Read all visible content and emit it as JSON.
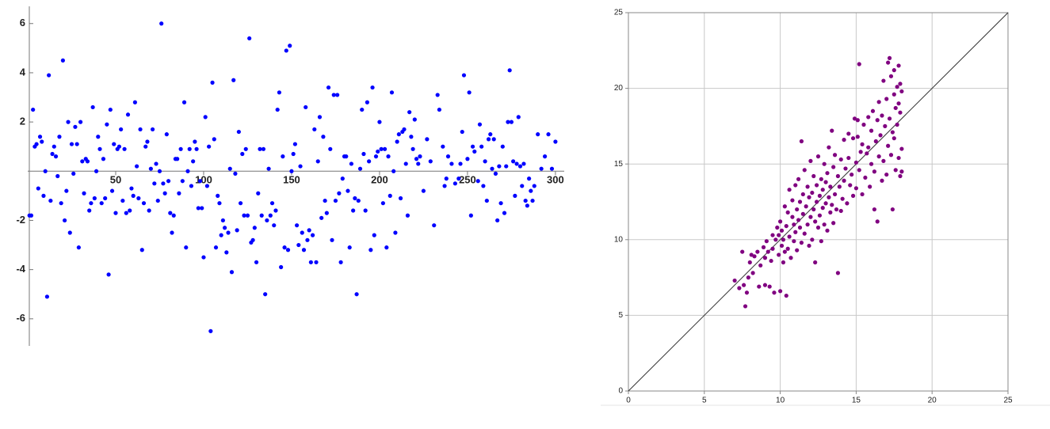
{
  "chart_data": [
    {
      "type": "scatter",
      "color": "#0000ff",
      "frame": false,
      "grid": false,
      "diagonal_line": false,
      "xlim": [
        0,
        305
      ],
      "ylim": [
        -7.1,
        6.7
      ],
      "xticks": [
        50,
        100,
        150,
        200,
        250,
        300
      ],
      "yticks": [
        -6,
        -4,
        -2,
        2,
        4,
        6
      ],
      "x": [
        1,
        2,
        3,
        4,
        5,
        6,
        7,
        8,
        9,
        10,
        11,
        12,
        13,
        14,
        15,
        16,
        17,
        18,
        19,
        20,
        21,
        22,
        23,
        24,
        25,
        26,
        27,
        28,
        29,
        30,
        31,
        32,
        33,
        34,
        35,
        36,
        37,
        38,
        39,
        40,
        41,
        42,
        43,
        44,
        45,
        46,
        47,
        48,
        49,
        50,
        51,
        52,
        53,
        54,
        55,
        56,
        57,
        58,
        59,
        60,
        61,
        62,
        63,
        64,
        65,
        66,
        67,
        68,
        69,
        70,
        71,
        72,
        73,
        74,
        75,
        76,
        77,
        78,
        79,
        80,
        81,
        82,
        83,
        84,
        85,
        86,
        87,
        88,
        89,
        90,
        91,
        92,
        93,
        94,
        95,
        96,
        97,
        98,
        99,
        100,
        101,
        102,
        103,
        104,
        105,
        106,
        107,
        108,
        109,
        110,
        111,
        112,
        113,
        114,
        115,
        116,
        117,
        118,
        119,
        120,
        121,
        122,
        123,
        124,
        125,
        126,
        127,
        128,
        129,
        130,
        131,
        132,
        133,
        134,
        135,
        136,
        137,
        138,
        139,
        140,
        141,
        142,
        143,
        144,
        145,
        146,
        147,
        148,
        149,
        150,
        151,
        152,
        153,
        154,
        155,
        156,
        157,
        158,
        159,
        160,
        161,
        162,
        163,
        164,
        165,
        166,
        167,
        168,
        169,
        170,
        171,
        172,
        173,
        174,
        175,
        176,
        177,
        178,
        179,
        180,
        181,
        182,
        183,
        184,
        185,
        186,
        187,
        188,
        189,
        190,
        191,
        192,
        193,
        194,
        195,
        196,
        197,
        198,
        199,
        200,
        201,
        202,
        203,
        204,
        205,
        206,
        207,
        208,
        209,
        210,
        211,
        212,
        213,
        214,
        215,
        216,
        217,
        218,
        219,
        220,
        221,
        222,
        223,
        225,
        227,
        229,
        231,
        233,
        234,
        236,
        237,
        238,
        239,
        241,
        243,
        245,
        246,
        247,
        248,
        250,
        251,
        252,
        253,
        254,
        256,
        257,
        258,
        259,
        260,
        261,
        262,
        263,
        264,
        265,
        266,
        267,
        268,
        269,
        270,
        271,
        272,
        273,
        274,
        275,
        276,
        277,
        278,
        279,
        280,
        281,
        282,
        283,
        284,
        285,
        286,
        287,
        288,
        290,
        292,
        294,
        296,
        298,
        300
      ],
      "values": [
        -1.8,
        -1.8,
        2.5,
        1.0,
        1.1,
        -0.7,
        1.4,
        1.2,
        -1.0,
        0,
        -5.1,
        3.9,
        -1.2,
        0.7,
        1.0,
        0.6,
        -0.2,
        1.4,
        -1.3,
        4.5,
        -2.0,
        -0.8,
        2.0,
        -2.5,
        1.1,
        -0.1,
        1.8,
        1.1,
        -3.1,
        2.0,
        0.4,
        -0.9,
        0.5,
        0.4,
        -1.6,
        -1.3,
        2.6,
        -1.1,
        0,
        1.4,
        0.9,
        -1.3,
        0.5,
        -1.1,
        1.9,
        -4.2,
        2.5,
        -0.8,
        1.1,
        -1.7,
        0.9,
        1.0,
        1.7,
        -1.2,
        0.9,
        -1.7,
        2.3,
        -1.6,
        -0.7,
        -1.0,
        2.8,
        0.2,
        -1.1,
        1.7,
        -3.2,
        -1.3,
        1.0,
        1.2,
        -1.6,
        0.1,
        1.7,
        -0.5,
        0.3,
        -1.2,
        0,
        6.0,
        -0.5,
        -0.9,
        1.5,
        -0.4,
        -1.7,
        -2.5,
        -1.8,
        0.5,
        0.5,
        -0.9,
        0.9,
        -0.4,
        2.8,
        -3.1,
        0,
        0.9,
        -0.6,
        0.4,
        1.2,
        0.9,
        -1.5,
        -0.4,
        -1.5,
        -3.5,
        2.2,
        -0.6,
        1.0,
        -6.5,
        3.6,
        1.3,
        -3.1,
        -1.0,
        -1.3,
        -2.6,
        -2.0,
        -2.3,
        -3.3,
        -2.5,
        0.1,
        -4.1,
        3.7,
        -0.1,
        -2.4,
        1.6,
        -1.3,
        0.7,
        -1.8,
        0.9,
        -1.8,
        5.4,
        -2.9,
        -2.8,
        -2.3,
        -3.7,
        -0.9,
        0.9,
        -1.8,
        0.9,
        -5.0,
        -2.0,
        0.1,
        -1.8,
        -1.3,
        -2.2,
        -1.6,
        2.5,
        3.2,
        -3.9,
        0.6,
        -3.1,
        4.9,
        -3.2,
        5.1,
        0,
        0.7,
        1.1,
        -2.2,
        -3.0,
        0.2,
        -2.5,
        -3.2,
        2.6,
        -2.8,
        -2.4,
        -3.7,
        -2.6,
        1.7,
        -3.7,
        0.4,
        2.2,
        -1.9,
        1.4,
        -1.2,
        -1.7,
        3.4,
        0.9,
        -2.8,
        3.1,
        -1.2,
        3.1,
        -0.9,
        -3.7,
        -0.3,
        0.6,
        0.6,
        -0.8,
        -3.1,
        0.3,
        -1.6,
        -1.1,
        -5.0,
        -1.2,
        0.1,
        2.5,
        0.7,
        -1.6,
        2.8,
        0.4,
        -3.2,
        3.4,
        -2.6,
        0.6,
        0.8,
        2.0,
        0.9,
        -1.3,
        0.9,
        -3.1,
        0.6,
        -1.0,
        3.2,
        0,
        -2.5,
        1.2,
        1.5,
        -1.1,
        1.6,
        1.7,
        0.3,
        -1.8,
        2.4,
        1.4,
        0.9,
        2.1,
        0.5,
        0.3,
        0.6,
        -0.8,
        1.3,
        0.4,
        -2.2,
        3.1,
        2.5,
        1.0,
        -0.6,
        -0.3,
        0.6,
        0.3,
        -0.5,
        -0.3,
        0.3,
        1.6,
        3.9,
        0.5,
        3.2,
        -1.8,
        1.0,
        0.8,
        -0.4,
        1.9,
        1.0,
        -0.6,
        0.4,
        -1.2,
        1.3,
        1.5,
        0.1,
        1.3,
        -0.1,
        -2.0,
        0.2,
        -1.3,
        1.0,
        -1.7,
        0.2,
        2.0,
        4.1,
        2.0,
        0.4,
        -1.0,
        0.3,
        2.2,
        0.2,
        -0.6,
        0.3,
        -1.2,
        -1.4,
        -0.3,
        -0.8,
        -1.2,
        -0.6,
        1.5,
        0.1,
        0.6,
        1.5,
        0.1,
        1.2
      ]
    },
    {
      "type": "scatter",
      "color": "#800080",
      "frame": true,
      "grid": true,
      "diagonal_line": true,
      "xlim": [
        0,
        25
      ],
      "ylim": [
        0,
        25
      ],
      "xticks": [
        0,
        5,
        10,
        15,
        20,
        25
      ],
      "yticks": [
        0,
        5,
        10,
        15,
        20,
        25
      ],
      "x": [
        7.0,
        7.3,
        7.5,
        7.6,
        7.7,
        7.8,
        7.9,
        8.0,
        8.1,
        8.2,
        8.3,
        8.5,
        8.6,
        8.7,
        8.9,
        9.0,
        9.0,
        9.1,
        9.2,
        9.3,
        9.4,
        9.5,
        9.5,
        9.6,
        9.7,
        9.8,
        9.9,
        9.9,
        10.0,
        10.0,
        10.1,
        10.1,
        10.2,
        10.2,
        10.3,
        10.3,
        10.4,
        10.4,
        10.5,
        10.5,
        10.6,
        10.6,
        10.7,
        10.8,
        10.8,
        10.9,
        10.9,
        11.0,
        11.0,
        11.1,
        11.1,
        11.2,
        11.2,
        11.3,
        11.3,
        11.4,
        11.4,
        11.5,
        11.5,
        11.6,
        11.6,
        11.7,
        11.8,
        11.8,
        11.9,
        11.9,
        12.0,
        12.0,
        12.1,
        12.1,
        12.2,
        12.2,
        12.3,
        12.3,
        12.4,
        12.4,
        12.5,
        12.5,
        12.6,
        12.6,
        12.7,
        12.7,
        12.8,
        12.8,
        12.9,
        12.9,
        13.0,
        13.0,
        13.1,
        13.1,
        13.2,
        13.2,
        13.3,
        13.3,
        13.4,
        13.4,
        13.5,
        13.5,
        13.6,
        13.6,
        13.7,
        13.8,
        13.8,
        13.9,
        14.0,
        14.0,
        14.1,
        14.2,
        14.2,
        14.3,
        14.4,
        14.5,
        14.5,
        14.6,
        14.7,
        14.8,
        14.8,
        14.9,
        15.0,
        15.0,
        15.1,
        15.1,
        15.2,
        15.2,
        15.3,
        15.4,
        15.4,
        15.5,
        15.6,
        15.7,
        15.8,
        15.8,
        15.9,
        16.0,
        16.0,
        16.1,
        16.2,
        16.2,
        16.3,
        16.4,
        16.4,
        16.5,
        16.5,
        16.6,
        16.7,
        16.7,
        16.8,
        16.8,
        16.9,
        17.0,
        17.0,
        17.1,
        17.1,
        17.2,
        17.2,
        17.3,
        17.3,
        17.4,
        17.4,
        17.5,
        17.5,
        17.5,
        17.6,
        17.6,
        17.7,
        17.7,
        17.8,
        17.8,
        17.8,
        17.9,
        17.9,
        17.9,
        18.0,
        18.0,
        18.0
      ],
      "values": [
        7.3,
        6.8,
        9.2,
        7.0,
        5.6,
        6.5,
        7.5,
        8.5,
        9.0,
        7.8,
        8.9,
        9.2,
        6.9,
        8.3,
        9.5,
        7.0,
        8.8,
        9.9,
        9.2,
        6.9,
        8.6,
        10.3,
        9.4,
        6.5,
        10.0,
        10.8,
        9.0,
        10.3,
        6.6,
        11.2,
        9.6,
        10.6,
        8.5,
        10.0,
        12.2,
        9.2,
        6.3,
        10.9,
        11.8,
        9.4,
        13.3,
        10.2,
        8.8,
        11.5,
        12.6,
        9.9,
        11.0,
        13.6,
        10.5,
        12.0,
        9.3,
        14.0,
        11.3,
        10.8,
        12.5,
        16.5,
        9.8,
        13.0,
        11.7,
        10.4,
        14.6,
        12.2,
        11.0,
        13.5,
        9.6,
        12.8,
        15.2,
        11.5,
        10.0,
        13.1,
        12.0,
        14.2,
        8.5,
        11.2,
        13.6,
        12.5,
        10.8,
        15.5,
        12.9,
        11.6,
        14.0,
        9.9,
        13.3,
        12.1,
        11.0,
        15.0,
        13.8,
        12.4,
        10.6,
        14.4,
        12.8,
        16.1,
        11.8,
        13.5,
        17.2,
        12.3,
        14.8,
        11.1,
        13.0,
        15.6,
        12.0,
        14.2,
        7.8,
        13.5,
        11.9,
        15.3,
        12.7,
        16.6,
        13.9,
        14.7,
        12.4,
        17.0,
        15.4,
        13.6,
        14.3,
        16.7,
        12.9,
        18.0,
        15.1,
        13.4,
        16.8,
        17.9,
        21.6,
        14.6,
        15.8,
        13.0,
        16.3,
        17.6,
        14.1,
        15.7,
        18.1,
        16.1,
        13.5,
        17.2,
        15.0,
        18.5,
        14.5,
        12.0,
        16.5,
        11.2,
        17.9,
        15.5,
        19.1,
        16.9,
        13.9,
        18.2,
        20.5,
        15.2,
        17.5,
        14.3,
        19.3,
        16.2,
        21.7,
        22.0,
        18.0,
        15.6,
        20.8,
        17.1,
        12.0,
        21.2,
        19.6,
        16.7,
        14.6,
        18.7,
        20.1,
        17.6,
        19.0,
        21.5,
        15.4,
        14.2,
        20.3,
        18.4,
        16.0,
        19.8,
        14.5
      ]
    }
  ]
}
